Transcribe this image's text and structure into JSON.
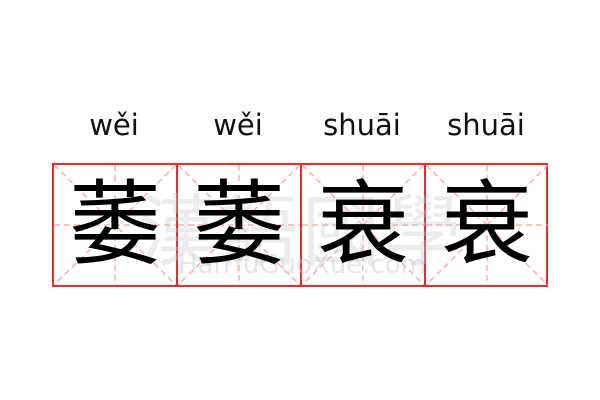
{
  "pinyin": [
    "wěi",
    "wěi",
    "shuāi",
    "shuāi"
  ],
  "characters": [
    "萎",
    "萎",
    "衰",
    "衰"
  ],
  "watermark": {
    "text": "漢語國學",
    "url": "HanYuGuoXue.com"
  },
  "colors": {
    "grid_border": "#ee2b2b",
    "guide_lines": "#f5a0a0"
  }
}
